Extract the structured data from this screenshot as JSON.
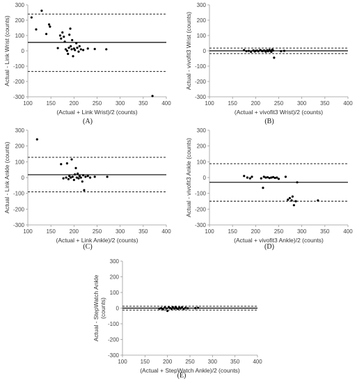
{
  "chart_data": [
    {
      "type": "scatter",
      "panel_label": "(A)",
      "xlabel": "(Actual + Link Wrist)/2 (counts)",
      "ylabel": "Actual - Link Wrist (counts)",
      "xlim": [
        100,
        400
      ],
      "ylim": [
        -300,
        300
      ],
      "x_ticks": [
        100,
        150,
        200,
        250,
        300,
        350,
        400
      ],
      "y_ticks": [
        -300,
        -200,
        -100,
        0,
        100,
        200,
        300
      ],
      "mean_line": 55,
      "limits": [
        240,
        -135
      ],
      "points": [
        [
          108,
          218
        ],
        [
          118,
          140
        ],
        [
          130,
          262
        ],
        [
          140,
          110
        ],
        [
          146,
          172
        ],
        [
          148,
          158
        ],
        [
          165,
          18
        ],
        [
          170,
          100
        ],
        [
          172,
          80
        ],
        [
          175,
          120
        ],
        [
          178,
          92
        ],
        [
          180,
          60
        ],
        [
          182,
          10
        ],
        [
          185,
          0
        ],
        [
          187,
          -20
        ],
        [
          189,
          20
        ],
        [
          190,
          105
        ],
        [
          192,
          145
        ],
        [
          193,
          30
        ],
        [
          195,
          10
        ],
        [
          196,
          70
        ],
        [
          198,
          -35
        ],
        [
          200,
          15
        ],
        [
          202,
          5
        ],
        [
          205,
          50
        ],
        [
          207,
          20
        ],
        [
          210,
          -5
        ],
        [
          212,
          30
        ],
        [
          215,
          10
        ],
        [
          220,
          5
        ],
        [
          230,
          15
        ],
        [
          245,
          12
        ],
        [
          270,
          10
        ],
        [
          370,
          -295
        ]
      ]
    },
    {
      "type": "scatter",
      "panel_label": "(B)",
      "xlabel": "(Actual + vivofit3 Wrist)/2 (counts)",
      "ylabel": "Actual - vivofit3 Wrist (counts)",
      "xlim": [
        100,
        400
      ],
      "ylim": [
        -300,
        300
      ],
      "x_ticks": [
        100,
        150,
        200,
        250,
        300,
        350,
        400
      ],
      "y_ticks": [
        -300,
        -200,
        -100,
        0,
        100,
        200,
        300
      ],
      "mean_line": 0,
      "limits": [
        18,
        -18
      ],
      "points": [
        [
          175,
          5
        ],
        [
          180,
          -2
        ],
        [
          185,
          0
        ],
        [
          190,
          -6
        ],
        [
          195,
          3
        ],
        [
          198,
          -4
        ],
        [
          200,
          0
        ],
        [
          203,
          2
        ],
        [
          206,
          -3
        ],
        [
          210,
          5
        ],
        [
          213,
          0
        ],
        [
          215,
          -2
        ],
        [
          218,
          3
        ],
        [
          220,
          0
        ],
        [
          222,
          -5
        ],
        [
          225,
          4
        ],
        [
          227,
          -2
        ],
        [
          230,
          6
        ],
        [
          232,
          0
        ],
        [
          234,
          -6
        ],
        [
          236,
          8
        ],
        [
          238,
          2
        ],
        [
          240,
          -45
        ],
        [
          255,
          -2
        ],
        [
          262,
          0
        ]
      ]
    },
    {
      "type": "scatter",
      "panel_label": "(C)",
      "xlabel": "(Actual + Link Ankle)/2 (counts)",
      "ylabel": "Actual - Link Ankle (counts)",
      "xlim": [
        100,
        400
      ],
      "ylim": [
        -300,
        300
      ],
      "x_ticks": [
        100,
        150,
        200,
        250,
        300,
        350,
        400
      ],
      "y_ticks": [
        -300,
        -200,
        -100,
        0,
        100,
        200,
        300
      ],
      "mean_line": 18,
      "limits": [
        128,
        -90
      ],
      "points": [
        [
          120,
          242
        ],
        [
          172,
          85
        ],
        [
          177,
          -5
        ],
        [
          183,
          0
        ],
        [
          185,
          90
        ],
        [
          188,
          -10
        ],
        [
          190,
          10
        ],
        [
          193,
          0
        ],
        [
          195,
          115
        ],
        [
          197,
          5
        ],
        [
          200,
          -15
        ],
        [
          202,
          20
        ],
        [
          204,
          60
        ],
        [
          206,
          0
        ],
        [
          208,
          25
        ],
        [
          210,
          -5
        ],
        [
          212,
          10
        ],
        [
          215,
          0
        ],
        [
          218,
          -25
        ],
        [
          220,
          15
        ],
        [
          222,
          -80
        ],
        [
          225,
          5
        ],
        [
          230,
          10
        ],
        [
          235,
          0
        ],
        [
          245,
          5
        ],
        [
          272,
          5
        ]
      ]
    },
    {
      "type": "scatter",
      "panel_label": "(D)",
      "xlabel": "(Actual + vivofit3 Ankle)/2 (counts)",
      "ylabel": "Actual - vivofit3 Ankle (counts)",
      "xlim": [
        100,
        400
      ],
      "ylim": [
        -300,
        300
      ],
      "x_ticks": [
        100,
        150,
        200,
        250,
        300,
        350,
        400
      ],
      "y_ticks": [
        -300,
        -200,
        -100,
        0,
        100,
        200,
        300
      ],
      "mean_line": -30,
      "limits": [
        88,
        -150
      ],
      "points": [
        [
          175,
          10
        ],
        [
          182,
          0
        ],
        [
          188,
          -5
        ],
        [
          192,
          5
        ],
        [
          212,
          -5
        ],
        [
          216,
          -65
        ],
        [
          218,
          5
        ],
        [
          222,
          0
        ],
        [
          226,
          2
        ],
        [
          230,
          -3
        ],
        [
          234,
          0
        ],
        [
          238,
          3
        ],
        [
          242,
          -2
        ],
        [
          246,
          0
        ],
        [
          250,
          -8
        ],
        [
          265,
          5
        ],
        [
          270,
          -140
        ],
        [
          274,
          -130
        ],
        [
          278,
          -145
        ],
        [
          280,
          -120
        ],
        [
          283,
          -175
        ],
        [
          287,
          -150
        ],
        [
          290,
          -30
        ],
        [
          335,
          -145
        ]
      ]
    },
    {
      "type": "scatter",
      "panel_label": "(E)",
      "xlabel": "(Actual + StepWatch Ankle)/2 (counts)",
      "ylabel": "Actual - StepWatch Ankle (counts)",
      "xlim": [
        100,
        400
      ],
      "ylim": [
        -300,
        300
      ],
      "x_ticks": [
        100,
        150,
        200,
        250,
        300,
        350,
        400
      ],
      "y_ticks": [
        -300,
        -200,
        -100,
        0,
        100,
        200,
        300
      ],
      "mean_line": 0,
      "limits": [
        12,
        -12
      ],
      "points": [
        [
          182,
          -3
        ],
        [
          186,
          0
        ],
        [
          190,
          -8
        ],
        [
          194,
          4
        ],
        [
          198,
          -2
        ],
        [
          200,
          -18
        ],
        [
          203,
          5
        ],
        [
          206,
          0
        ],
        [
          209,
          -4
        ],
        [
          212,
          6
        ],
        [
          215,
          -3
        ],
        [
          218,
          8
        ],
        [
          220,
          0
        ],
        [
          223,
          -5
        ],
        [
          226,
          3
        ],
        [
          229,
          -2
        ],
        [
          232,
          5
        ],
        [
          236,
          -6
        ],
        [
          240,
          2
        ],
        [
          245,
          -1
        ],
        [
          262,
          0
        ],
        [
          268,
          2
        ]
      ]
    }
  ]
}
